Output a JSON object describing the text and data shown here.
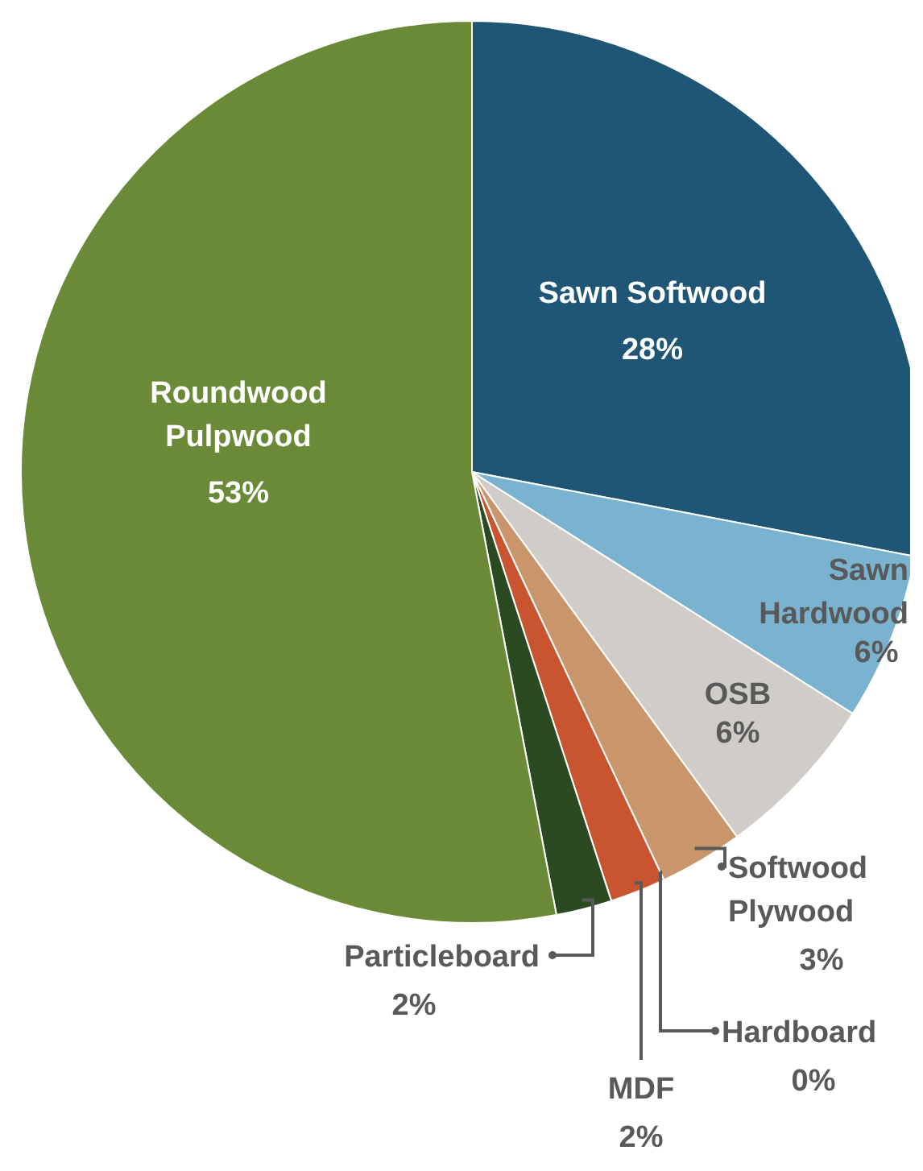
{
  "chart_data": {
    "type": "pie",
    "categories": [
      "Sawn Softwood",
      "Sawn Hardwood",
      "OSB",
      "Softwood Plywood",
      "Hardboard",
      "MDF",
      "Particleboard",
      "Roundwood Pulpwood"
    ],
    "values": [
      28,
      6,
      6,
      3,
      0,
      2,
      2,
      53
    ],
    "value_labels": [
      "28%",
      "6%",
      "6%",
      "3%",
      "0%",
      "2%",
      "2%",
      "53%"
    ],
    "colors": [
      "#1f5575",
      "#7ab3d0",
      "#d0ccc8",
      "#c8966a",
      "#e8a33d",
      "#c85530",
      "#2b4a22",
      "#6b8a38"
    ]
  }
}
